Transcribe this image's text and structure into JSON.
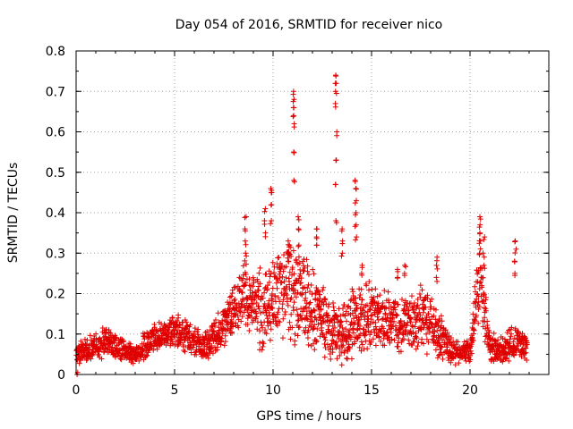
{
  "chart_data": {
    "type": "scatter",
    "title": "Day 054 of 2016, SRMTID for receiver nico",
    "xlabel": "GPS time / hours",
    "ylabel": "SRMTID / TECUs",
    "xlim": [
      0,
      24
    ],
    "ylim": [
      0,
      0.8
    ],
    "xticks": [
      0,
      5,
      10,
      15,
      20
    ],
    "xtick_labels": [
      "0",
      "5",
      "10",
      "15",
      "20"
    ],
    "yticks": [
      0,
      0.1,
      0.2,
      0.3,
      0.4,
      0.5,
      0.6,
      0.7,
      0.8
    ],
    "ytick_labels": [
      "0",
      "0.1",
      "0.2",
      "0.3",
      "0.4",
      "0.5",
      "0.6",
      "0.7",
      "0.8"
    ],
    "grid": true,
    "marker": "+",
    "color": "#e00000",
    "profile": {
      "x": [
        0.0,
        0.5,
        1.0,
        1.5,
        2.0,
        2.5,
        3.0,
        3.5,
        4.0,
        4.5,
        5.0,
        5.5,
        6.0,
        6.5,
        7.0,
        7.5,
        8.0,
        8.5,
        9.0,
        9.5,
        10.0,
        10.5,
        11.0,
        11.5,
        12.0,
        12.5,
        13.0,
        13.5,
        14.0,
        14.5,
        15.0,
        15.5,
        16.0,
        16.5,
        17.0,
        17.5,
        18.0,
        18.5,
        19.0,
        19.5,
        20.0,
        20.5,
        21.0,
        21.5,
        22.0,
        22.5,
        22.9
      ],
      "center": [
        0.05,
        0.06,
        0.07,
        0.08,
        0.07,
        0.06,
        0.05,
        0.07,
        0.09,
        0.1,
        0.11,
        0.1,
        0.08,
        0.07,
        0.09,
        0.12,
        0.16,
        0.2,
        0.17,
        0.16,
        0.19,
        0.21,
        0.2,
        0.18,
        0.16,
        0.14,
        0.1,
        0.11,
        0.13,
        0.14,
        0.15,
        0.14,
        0.13,
        0.12,
        0.13,
        0.14,
        0.13,
        0.1,
        0.06,
        0.05,
        0.06,
        0.24,
        0.07,
        0.06,
        0.07,
        0.08,
        0.06
      ],
      "spread": [
        0.03,
        0.03,
        0.04,
        0.04,
        0.04,
        0.03,
        0.03,
        0.04,
        0.04,
        0.04,
        0.05,
        0.05,
        0.04,
        0.04,
        0.05,
        0.06,
        0.08,
        0.1,
        0.1,
        0.12,
        0.13,
        0.13,
        0.14,
        0.13,
        0.12,
        0.1,
        0.08,
        0.09,
        0.1,
        0.1,
        0.09,
        0.08,
        0.08,
        0.07,
        0.08,
        0.09,
        0.09,
        0.07,
        0.04,
        0.03,
        0.04,
        0.12,
        0.04,
        0.04,
        0.05,
        0.05,
        0.04
      ]
    },
    "spikes": [
      {
        "x": 8.6,
        "values": [
          0.3,
          0.33,
          0.36,
          0.39
        ]
      },
      {
        "x": 9.6,
        "values": [
          0.35,
          0.38,
          0.41
        ]
      },
      {
        "x": 9.9,
        "values": [
          0.38,
          0.42,
          0.45,
          0.46
        ]
      },
      {
        "x": 10.8,
        "values": [
          0.28,
          0.3,
          0.32,
          0.33
        ]
      },
      {
        "x": 11.05,
        "values": [
          0.48,
          0.55,
          0.62,
          0.64,
          0.66,
          0.68,
          0.7
        ]
      },
      {
        "x": 11.3,
        "values": [
          0.32,
          0.36,
          0.39
        ]
      },
      {
        "x": 12.2,
        "values": [
          0.32,
          0.34,
          0.36
        ]
      },
      {
        "x": 13.2,
        "values": [
          0.38,
          0.47,
          0.53,
          0.6,
          0.67,
          0.7,
          0.72,
          0.74
        ]
      },
      {
        "x": 13.5,
        "values": [
          0.3,
          0.33,
          0.36
        ]
      },
      {
        "x": 14.2,
        "values": [
          0.34,
          0.37,
          0.4,
          0.43,
          0.46,
          0.48
        ]
      },
      {
        "x": 14.5,
        "values": [
          0.25,
          0.27
        ]
      },
      {
        "x": 16.3,
        "values": [
          0.24,
          0.26
        ]
      },
      {
        "x": 16.7,
        "values": [
          0.25,
          0.27
        ]
      },
      {
        "x": 18.3,
        "values": [
          0.24,
          0.27,
          0.29
        ]
      },
      {
        "x": 20.5,
        "values": [
          0.3,
          0.33,
          0.35,
          0.37,
          0.39
        ]
      },
      {
        "x": 20.7,
        "values": [
          0.27,
          0.3,
          0.34
        ]
      },
      {
        "x": 22.3,
        "values": [
          0.25,
          0.28,
          0.31,
          0.33
        ]
      }
    ]
  }
}
